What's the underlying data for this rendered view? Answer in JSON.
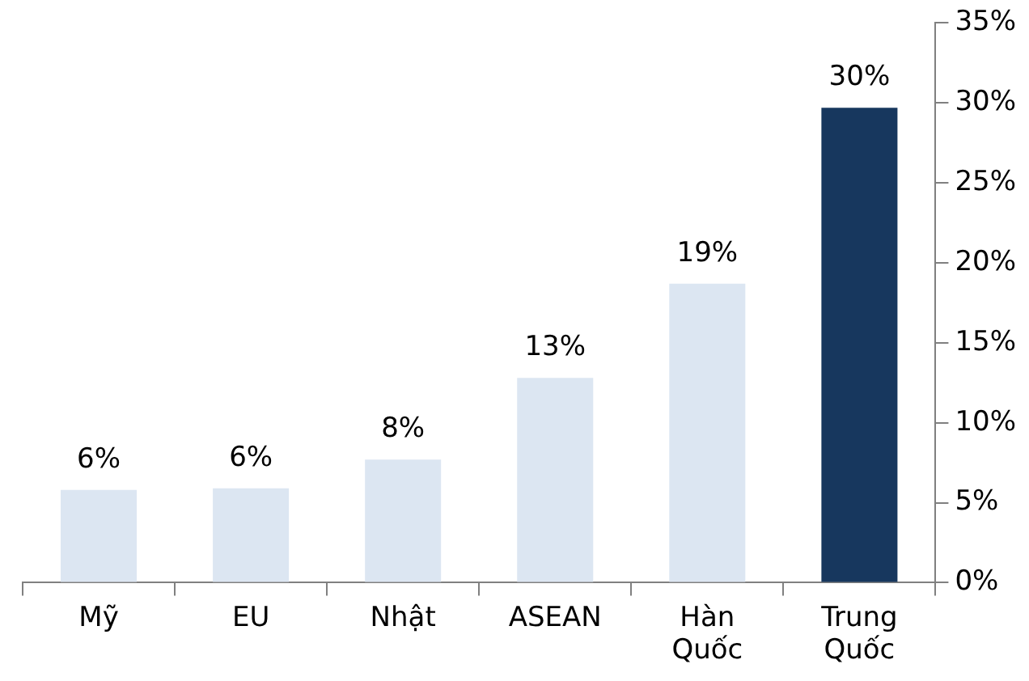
{
  "chart_data": {
    "type": "bar",
    "categories": [
      "Mỹ",
      "EU",
      "Nhật",
      "ASEAN",
      "Hàn Quốc",
      "Trung Quốc"
    ],
    "values": [
      5.8,
      5.9,
      7.7,
      12.8,
      18.7,
      29.7
    ],
    "colors": [
      "#dce6f2",
      "#dce6f2",
      "#dce6f2",
      "#dce6f2",
      "#dce6f2",
      "#17375e"
    ],
    "value_labels": [
      "6%",
      "6%",
      "8%",
      "13%",
      "19%",
      "30%"
    ],
    "ylim": [
      0,
      35
    ],
    "yticks": [
      {
        "value": 0,
        "label": "0%"
      },
      {
        "value": 5,
        "label": "5%"
      },
      {
        "value": 10,
        "label": "10%"
      },
      {
        "value": 15,
        "label": "15%"
      },
      {
        "value": 20,
        "label": "20%"
      },
      {
        "value": 25,
        "label": "25%"
      },
      {
        "value": 30,
        "label": "30%"
      },
      {
        "value": 35,
        "label": "35%"
      }
    ],
    "grid": false,
    "legend": false
  }
}
